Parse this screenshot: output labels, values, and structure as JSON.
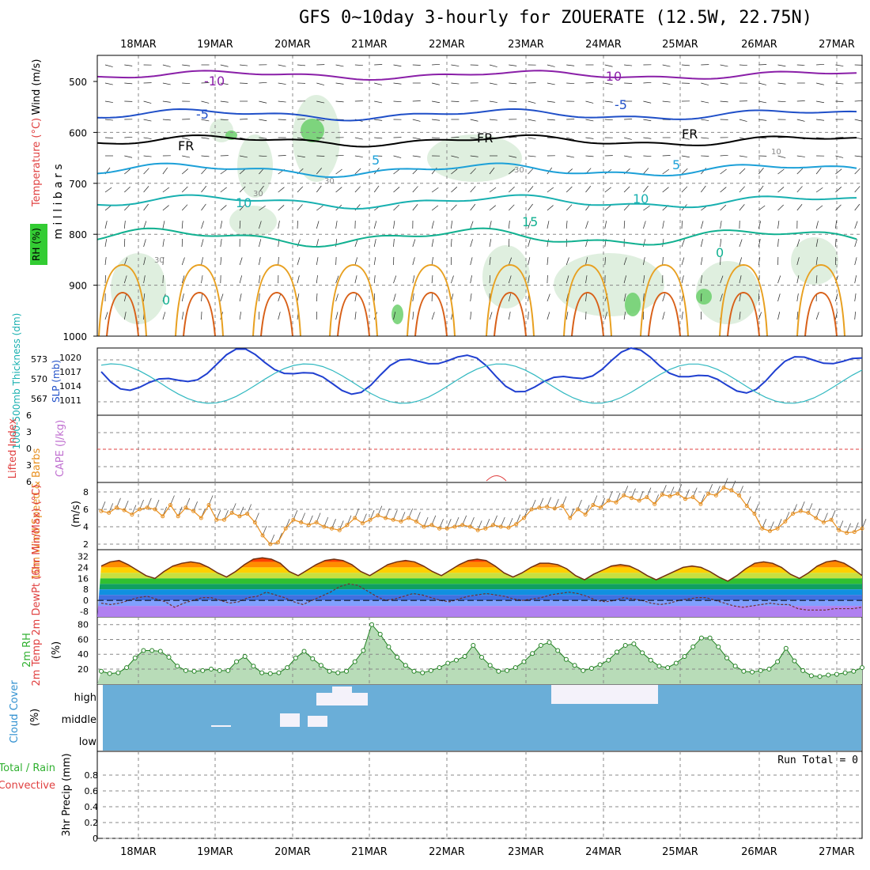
{
  "title": "GFS 0~10day 3-hourly for ZOUERATE (12.5W, 22.75N)",
  "chart_data": {
    "type": "meteogram",
    "dates": [
      "18MAR",
      "19MAR",
      "20MAR",
      "21MAR",
      "22MAR",
      "23MAR",
      "24MAR",
      "25MAR",
      "26MAR",
      "27MAR"
    ],
    "panels": {
      "upper_air": {
        "ylabel": "millibars",
        "yticks": [
          500,
          600,
          700,
          800,
          900,
          1000
        ],
        "side_labels": [
          "Wind (m/s)",
          "Temperature (°C)",
          "RH (%)"
        ],
        "contour_labels": [
          "-10",
          "-10",
          "-5",
          "-5",
          "FR",
          "FR",
          "FR",
          "5",
          "5",
          "10",
          "10",
          "15",
          "0",
          "0",
          "30",
          "30",
          "30",
          "30",
          "10"
        ]
      },
      "slp_thickness": {
        "left_label": "1000-500mb Thickness (dm)",
        "right_label": "SLP (mb)",
        "thickness_ticks": [
          573,
          570,
          567
        ],
        "slp_ticks": [
          1020,
          1017,
          1014,
          1011
        ]
      },
      "cape_li": {
        "left_label": "Lifted Index",
        "right_label": "CAPE (J/kg)",
        "yticks": [
          6,
          3,
          0,
          3,
          6
        ]
      },
      "wind10m": {
        "left_label": "10m Wind Speed & Barbs",
        "unit": "(m/s)",
        "yticks": [
          8,
          6,
          4,
          2
        ],
        "values": [
          5.8,
          5.6,
          6.2,
          5.9,
          5.4,
          6.0,
          6.2,
          6.0,
          5.2,
          6.5,
          5.2,
          6.2,
          5.8,
          5.0,
          6.5,
          4.8,
          4.8,
          5.6,
          5.2,
          5.5,
          4.5,
          3.0,
          2.0,
          2.2,
          3.8,
          4.8,
          4.5,
          4.2,
          4.5,
          4.0,
          3.8,
          3.6,
          4.2,
          5.0,
          4.4,
          4.8,
          5.3,
          5.0,
          4.8,
          4.6,
          5.0,
          4.6,
          4.0,
          4.2,
          3.8,
          3.8,
          4.0,
          4.2,
          4.0,
          3.6,
          3.8,
          4.2,
          4.0,
          3.9,
          4.3,
          5.0,
          6.0,
          6.2,
          6.3,
          6.1,
          6.4,
          5.0,
          6.0,
          5.4,
          6.5,
          6.2,
          7.0,
          6.8,
          7.6,
          7.3,
          7.0,
          7.4,
          6.6,
          7.7,
          7.5,
          7.8,
          7.2,
          7.4,
          6.6,
          7.8,
          7.6,
          8.5,
          8.2,
          7.6,
          6.4,
          5.5,
          3.8,
          3.5,
          3.8,
          4.6,
          5.5,
          5.8,
          5.6,
          5.0,
          4.5,
          4.8,
          3.6,
          3.3,
          3.4,
          3.8
        ]
      },
      "temp2m": {
        "left_label": "2m Temp 2m DewPt (6hr Min/Max) (°C)",
        "yticks": [
          32,
          24,
          16,
          8,
          0,
          -8
        ],
        "temp": [
          25,
          28,
          29,
          26,
          22,
          18,
          16,
          21,
          25,
          27,
          28,
          27,
          24,
          20,
          17,
          21,
          26,
          30,
          31,
          30,
          27,
          21,
          18,
          22,
          26,
          29,
          30,
          29,
          26,
          21,
          18,
          22,
          26,
          28,
          29,
          28,
          25,
          21,
          18,
          22,
          26,
          29,
          30,
          29,
          25,
          20,
          17,
          20,
          24,
          27,
          27,
          26,
          23,
          18,
          15,
          19,
          22,
          25,
          26,
          25,
          22,
          18,
          15,
          18,
          21,
          24,
          25,
          24,
          21,
          17,
          14,
          18,
          23,
          27,
          28,
          27,
          24,
          19,
          16,
          20,
          25,
          28,
          29,
          27,
          23,
          18
        ],
        "dew": [
          -2,
          -3,
          -2,
          0,
          2,
          3,
          1,
          -1,
          -5,
          -2,
          0,
          2,
          2,
          0,
          -2,
          -1,
          2,
          3,
          6,
          4,
          2,
          -1,
          -3,
          0,
          3,
          6,
          10,
          12,
          11,
          7,
          3,
          0,
          1,
          3,
          5,
          4,
          2,
          0,
          -1,
          1,
          3,
          4,
          5,
          4,
          3,
          1,
          0,
          1,
          2,
          4,
          5,
          6,
          5,
          3,
          0,
          -1,
          0,
          2,
          1,
          0,
          -2,
          -3,
          -2,
          0,
          1,
          2,
          2,
          0,
          -2,
          -4,
          -5,
          -4,
          -3,
          -2,
          -3,
          -3,
          -6,
          -7,
          -7,
          -7,
          -6,
          -6,
          -6,
          -5
        ]
      },
      "rh2m": {
        "left_label": "2m RH",
        "unit": "(%)",
        "yticks": [
          80,
          60,
          40,
          20
        ],
        "values": [
          17,
          14,
          15,
          22,
          35,
          45,
          45,
          44,
          36,
          24,
          18,
          17,
          18,
          20,
          18,
          18,
          30,
          37,
          24,
          15,
          14,
          15,
          22,
          35,
          44,
          34,
          25,
          17,
          15,
          17,
          30,
          45,
          80,
          67,
          50,
          36,
          25,
          17,
          15,
          18,
          22,
          28,
          32,
          37,
          52,
          36,
          25,
          17,
          18,
          22,
          30,
          41,
          52,
          56,
          45,
          33,
          25,
          18,
          21,
          26,
          32,
          43,
          52,
          54,
          42,
          32,
          24,
          22,
          28,
          37,
          50,
          62,
          62,
          50,
          35,
          24,
          17,
          16,
          18,
          20,
          30,
          48,
          31,
          18,
          11,
          10,
          12,
          13,
          15,
          17,
          22
        ]
      },
      "cloud": {
        "left_label": "Cloud Cover",
        "unit": "(%)",
        "levels": [
          "high",
          "middle",
          "low"
        ]
      },
      "precip": {
        "left_label": "Total / Rain Convective",
        "ylabel": "3hr Precip (mm)",
        "yticks": [
          0.8,
          0.6,
          0.4,
          0.2,
          0
        ],
        "run_total": "Run Total = 0"
      }
    }
  }
}
